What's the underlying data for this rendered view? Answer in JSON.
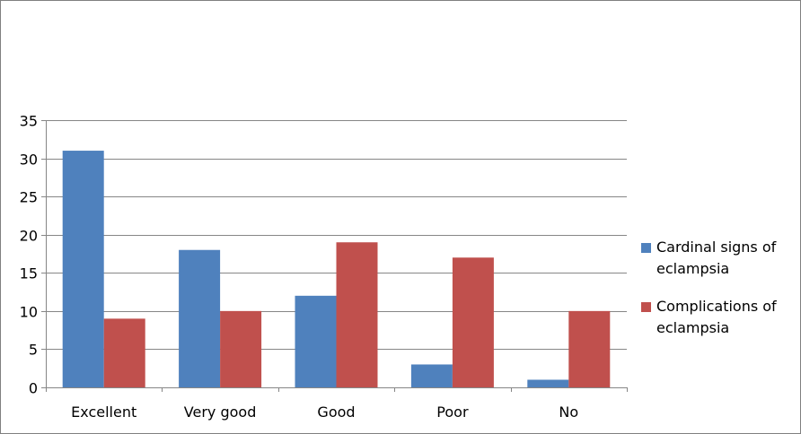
{
  "chart_data": {
    "type": "bar",
    "title": "",
    "xlabel": "",
    "ylabel": "",
    "categories": [
      "Excellent",
      "Very good",
      "Good",
      "Poor",
      "No"
    ],
    "series": [
      {
        "name": "Cardinal signs of eclampsia",
        "name_lines": [
          "Cardinal signs of",
          "eclampsia"
        ],
        "color": "#4f81bd",
        "values": [
          31,
          18,
          12,
          3,
          1
        ]
      },
      {
        "name": "Complications of eclampsia",
        "name_lines": [
          "Complications of",
          "eclampsia"
        ],
        "color": "#c0504d",
        "values": [
          9,
          10,
          19,
          17,
          10
        ]
      }
    ],
    "ylim": [
      0,
      35
    ],
    "yticks": [
      0,
      5,
      10,
      15,
      20,
      25,
      30,
      35
    ],
    "grid": true,
    "legend": "right"
  }
}
